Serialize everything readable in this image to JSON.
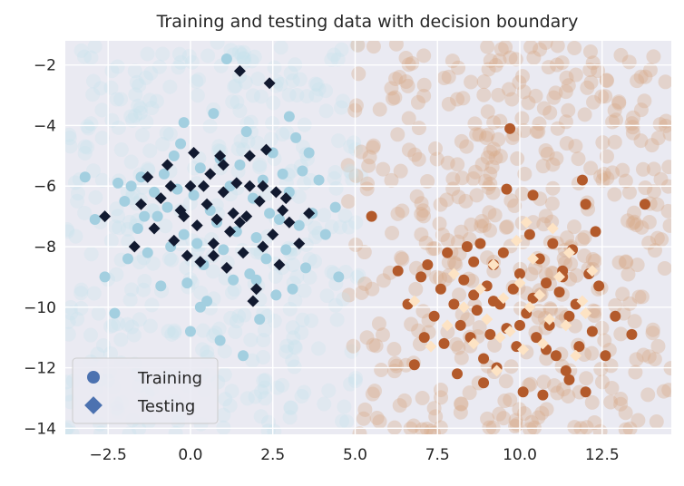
{
  "chart_data": {
    "type": "scatter",
    "title": "Training and testing data with decision boundary",
    "xlabel": "",
    "ylabel": "",
    "xlim": [
      -3.8,
      14.6
    ],
    "ylim": [
      -14.2,
      -1.2
    ],
    "xticks": [
      -2.5,
      0.0,
      2.5,
      5.0,
      7.5,
      10.0,
      12.5
    ],
    "xtick_labels": [
      "−2.5",
      "0.0",
      "2.5",
      "5.0",
      "7.5",
      "10.0",
      "12.5"
    ],
    "yticks": [
      -14,
      -12,
      -10,
      -8,
      -6,
      -4,
      -2
    ],
    "ytick_labels": [
      "−14",
      "−12",
      "−10",
      "−8",
      "−6",
      "−4",
      "−2"
    ],
    "grid": true,
    "legend": {
      "placement": "lower-left",
      "entries": [
        {
          "label": "Training",
          "marker": "circle",
          "color": "#4c72b0"
        },
        {
          "label": "Testing",
          "marker": "diamond",
          "color": "#4c72b0"
        }
      ]
    },
    "colors": {
      "background": "#eaeaf2",
      "grid": "#ffffff",
      "class0_train": "#a3cfe0",
      "class0_test": "#121a30",
      "class1_train": "#b35a2b",
      "class1_test": "#fde3c4",
      "class0_boundary": "#c6e2ec",
      "class1_boundary": "#d6a888"
    },
    "decision_boundary_x": 5.0,
    "series": [
      {
        "name": "Training",
        "class": 0,
        "marker": "circle",
        "points": [
          [
            -3.2,
            -5.7
          ],
          [
            -2.9,
            -7.1
          ],
          [
            -2.6,
            -9.0
          ],
          [
            -2.3,
            -10.2
          ],
          [
            -2.2,
            -5.9
          ],
          [
            -2.0,
            -6.5
          ],
          [
            -1.8,
            -6.0
          ],
          [
            -1.6,
            -7.4
          ],
          [
            -1.5,
            -5.7
          ],
          [
            -1.3,
            -8.2
          ],
          [
            -1.1,
            -6.2
          ],
          [
            -1.0,
            -7.0
          ],
          [
            -0.9,
            -9.3
          ],
          [
            -0.8,
            -5.6
          ],
          [
            -0.7,
            -6.7
          ],
          [
            -0.6,
            -8.0
          ],
          [
            -0.5,
            -5.0
          ],
          [
            -0.4,
            -6.1
          ],
          [
            -0.3,
            -4.6
          ],
          [
            -0.2,
            -7.6
          ],
          [
            -0.1,
            -9.2
          ],
          [
            0.0,
            -10.8
          ],
          [
            0.1,
            -6.3
          ],
          [
            0.2,
            -7.9
          ],
          [
            0.3,
            -5.4
          ],
          [
            0.4,
            -8.6
          ],
          [
            0.5,
            -9.8
          ],
          [
            0.6,
            -6.8
          ],
          [
            0.7,
            -3.6
          ],
          [
            0.8,
            -7.2
          ],
          [
            0.9,
            -5.1
          ],
          [
            1.0,
            -8.1
          ],
          [
            1.1,
            -1.8
          ],
          [
            1.2,
            -6.0
          ],
          [
            1.3,
            -9.1
          ],
          [
            1.4,
            -7.5
          ],
          [
            1.5,
            -5.3
          ],
          [
            1.6,
            -11.6
          ],
          [
            1.7,
            -4.2
          ],
          [
            1.8,
            -8.9
          ],
          [
            1.9,
            -6.4
          ],
          [
            2.0,
            -7.7
          ],
          [
            2.1,
            -10.4
          ],
          [
            2.2,
            -5.8
          ],
          [
            2.3,
            -8.4
          ],
          [
            2.4,
            -6.9
          ],
          [
            2.5,
            -4.9
          ],
          [
            2.6,
            -9.6
          ],
          [
            2.7,
            -7.1
          ],
          [
            2.8,
            -5.6
          ],
          [
            2.9,
            -8.1
          ],
          [
            3.0,
            -6.2
          ],
          [
            3.1,
            -9.4
          ],
          [
            3.2,
            -4.4
          ],
          [
            3.3,
            -7.3
          ],
          [
            3.4,
            -5.5
          ],
          [
            3.5,
            -8.7
          ],
          [
            3.7,
            -6.9
          ],
          [
            3.9,
            -5.8
          ],
          [
            4.1,
            -7.6
          ],
          [
            4.5,
            -9.0
          ],
          [
            4.4,
            -6.7
          ],
          [
            3.0,
            -3.7
          ],
          [
            0.3,
            -10.0
          ],
          [
            -1.4,
            -7.0
          ],
          [
            -1.9,
            -8.4
          ],
          [
            0.9,
            -11.1
          ],
          [
            2.0,
            -9.1
          ],
          [
            3.6,
            -4.9
          ],
          [
            -0.2,
            -3.9
          ]
        ]
      },
      {
        "name": "Testing",
        "class": 0,
        "marker": "diamond",
        "points": [
          [
            -2.6,
            -7.0
          ],
          [
            -1.7,
            -8.0
          ],
          [
            -1.5,
            -6.6
          ],
          [
            -1.3,
            -5.7
          ],
          [
            -1.1,
            -7.4
          ],
          [
            -0.9,
            -6.4
          ],
          [
            -0.7,
            -5.3
          ],
          [
            -0.5,
            -7.8
          ],
          [
            -0.3,
            -6.8
          ],
          [
            -0.1,
            -8.3
          ],
          [
            0.0,
            -6.0
          ],
          [
            0.1,
            -4.9
          ],
          [
            0.2,
            -7.3
          ],
          [
            0.3,
            -8.5
          ],
          [
            0.5,
            -6.6
          ],
          [
            0.6,
            -5.6
          ],
          [
            0.7,
            -7.9
          ],
          [
            0.8,
            -7.1
          ],
          [
            0.9,
            -5.0
          ],
          [
            1.0,
            -6.2
          ],
          [
            1.1,
            -8.7
          ],
          [
            1.2,
            -7.5
          ],
          [
            1.3,
            -6.9
          ],
          [
            1.4,
            -5.9
          ],
          [
            1.5,
            -2.2
          ],
          [
            1.6,
            -8.2
          ],
          [
            1.7,
            -7.0
          ],
          [
            1.8,
            -6.0
          ],
          [
            1.9,
            -9.8
          ],
          [
            2.0,
            -9.4
          ],
          [
            2.1,
            -6.5
          ],
          [
            2.2,
            -8.0
          ],
          [
            2.3,
            -4.8
          ],
          [
            2.4,
            -2.6
          ],
          [
            2.5,
            -7.6
          ],
          [
            2.6,
            -6.2
          ],
          [
            2.7,
            -8.6
          ],
          [
            2.8,
            -6.8
          ],
          [
            3.0,
            -7.2
          ],
          [
            3.3,
            -7.9
          ],
          [
            3.6,
            -6.9
          ],
          [
            0.4,
            -6.0
          ],
          [
            1.0,
            -5.3
          ],
          [
            1.5,
            -7.2
          ],
          [
            2.2,
            -6.0
          ],
          [
            -0.6,
            -6.0
          ],
          [
            0.7,
            -8.3
          ],
          [
            1.8,
            -5.0
          ],
          [
            2.9,
            -6.4
          ],
          [
            -0.2,
            -7.0
          ]
        ]
      },
      {
        "name": "Training",
        "class": 1,
        "marker": "circle",
        "points": [
          [
            5.5,
            -7.0
          ],
          [
            6.3,
            -8.8
          ],
          [
            6.6,
            -9.9
          ],
          [
            6.8,
            -11.9
          ],
          [
            7.0,
            -9.0
          ],
          [
            7.2,
            -8.6
          ],
          [
            7.4,
            -10.3
          ],
          [
            7.6,
            -9.4
          ],
          [
            7.7,
            -11.2
          ],
          [
            7.8,
            -8.2
          ],
          [
            8.0,
            -9.9
          ],
          [
            8.1,
            -12.2
          ],
          [
            8.2,
            -10.6
          ],
          [
            8.3,
            -9.1
          ],
          [
            8.4,
            -8.0
          ],
          [
            8.5,
            -11.0
          ],
          [
            8.6,
            -9.6
          ],
          [
            8.7,
            -10.1
          ],
          [
            8.8,
            -7.9
          ],
          [
            8.9,
            -11.7
          ],
          [
            9.0,
            -9.3
          ],
          [
            9.1,
            -10.9
          ],
          [
            9.2,
            -8.6
          ],
          [
            9.3,
            -12.0
          ],
          [
            9.4,
            -9.9
          ],
          [
            9.5,
            -8.2
          ],
          [
            9.6,
            -10.7
          ],
          [
            9.7,
            -4.1
          ],
          [
            9.8,
            -9.4
          ],
          [
            9.9,
            -11.3
          ],
          [
            10.0,
            -8.9
          ],
          [
            10.1,
            -12.8
          ],
          [
            10.2,
            -10.2
          ],
          [
            10.3,
            -7.6
          ],
          [
            10.4,
            -9.7
          ],
          [
            10.5,
            -11.0
          ],
          [
            10.6,
            -8.4
          ],
          [
            10.7,
            -12.9
          ],
          [
            10.8,
            -9.2
          ],
          [
            10.9,
            -10.6
          ],
          [
            11.0,
            -7.9
          ],
          [
            11.1,
            -11.6
          ],
          [
            11.2,
            -9.5
          ],
          [
            11.3,
            -8.8
          ],
          [
            11.4,
            -12.1
          ],
          [
            11.5,
            -10.3
          ],
          [
            11.6,
            -8.1
          ],
          [
            11.7,
            -9.9
          ],
          [
            11.8,
            -11.3
          ],
          [
            11.9,
            -5.8
          ],
          [
            12.0,
            -6.6
          ],
          [
            12.1,
            -8.9
          ],
          [
            12.2,
            -10.8
          ],
          [
            12.3,
            -7.5
          ],
          [
            12.4,
            -9.3
          ],
          [
            12.6,
            -11.6
          ],
          [
            12.9,
            -10.3
          ],
          [
            13.4,
            -10.9
          ],
          [
            13.8,
            -6.6
          ],
          [
            10.4,
            -6.3
          ],
          [
            9.6,
            -6.1
          ],
          [
            11.3,
            -9.0
          ],
          [
            8.6,
            -8.5
          ],
          [
            10.0,
            -10.6
          ],
          [
            9.2,
            -9.8
          ],
          [
            10.8,
            -11.4
          ],
          [
            7.1,
            -11.0
          ],
          [
            11.5,
            -12.4
          ],
          [
            8.9,
            -12.5
          ],
          [
            12.0,
            -12.8
          ]
        ]
      },
      {
        "name": "Testing",
        "class": 1,
        "marker": "diamond",
        "points": [
          [
            6.8,
            -9.8
          ],
          [
            7.3,
            -11.3
          ],
          [
            7.8,
            -10.6
          ],
          [
            8.0,
            -8.9
          ],
          [
            8.3,
            -10.0
          ],
          [
            8.6,
            -11.2
          ],
          [
            8.8,
            -9.4
          ],
          [
            9.0,
            -10.4
          ],
          [
            9.2,
            -8.6
          ],
          [
            9.4,
            -11.0
          ],
          [
            9.5,
            -9.7
          ],
          [
            9.7,
            -10.8
          ],
          [
            9.9,
            -7.8
          ],
          [
            10.0,
            -9.2
          ],
          [
            10.1,
            -11.4
          ],
          [
            10.3,
            -10.0
          ],
          [
            10.4,
            -8.4
          ],
          [
            10.6,
            -9.6
          ],
          [
            10.7,
            -11.2
          ],
          [
            10.9,
            -10.4
          ],
          [
            11.0,
            -7.4
          ],
          [
            11.2,
            -9.0
          ],
          [
            11.4,
            -10.6
          ],
          [
            11.5,
            -8.2
          ],
          [
            11.7,
            -11.6
          ],
          [
            11.9,
            -9.8
          ],
          [
            12.0,
            -10.2
          ],
          [
            12.2,
            -8.8
          ],
          [
            10.2,
            -7.2
          ],
          [
            9.3,
            -12.1
          ]
        ]
      }
    ]
  }
}
